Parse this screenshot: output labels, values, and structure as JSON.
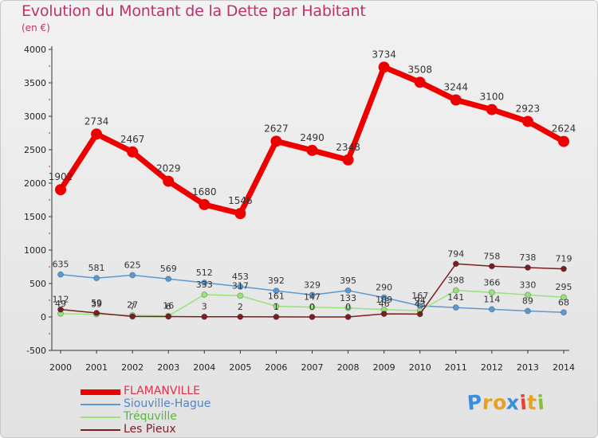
{
  "header": {
    "title": "Evolution du Montant de la Dette par Habitant",
    "subtitle": "(en €)"
  },
  "colors": {
    "title": "#c0306a",
    "axis": "#333333"
  },
  "chart_data": {
    "type": "line",
    "title": "Evolution du Montant de la Dette par Habitant",
    "subtitle": "(en €)",
    "xlabel": "",
    "ylabel": "",
    "categories": [
      "2000",
      "2001",
      "2002",
      "2003",
      "2004",
      "2005",
      "2006",
      "2007",
      "2008",
      "2009",
      "2010",
      "2011",
      "2012",
      "2013",
      "2014"
    ],
    "ylim": [
      -500,
      4000
    ],
    "yticks": [
      -500,
      0,
      500,
      1000,
      1500,
      2000,
      2500,
      3000,
      3500,
      4000
    ],
    "grid": false,
    "legend_position": "bottom-left",
    "series": [
      {
        "name": "FLAMANVILLE",
        "color": "#ee0000",
        "labelColor": "#e03050",
        "values": [
          1902,
          2734,
          2467,
          2029,
          1680,
          1546,
          2627,
          2490,
          2348,
          3734,
          3508,
          3244,
          3100,
          2923,
          2624
        ]
      },
      {
        "name": "Siouville-Hague",
        "color": "#5a9ad2",
        "labelColor": "#4f86c6",
        "values": [
          635,
          581,
          625,
          569,
          512,
          453,
          392,
          329,
          395,
          290,
          167,
          141,
          114,
          89,
          68
        ]
      },
      {
        "name": "Tréquville",
        "color": "#99e27a",
        "labelColor": "#55b83c",
        "values": [
          49,
          39,
          27,
          16,
          333,
          317,
          161,
          147,
          133,
          109,
          94,
          398,
          366,
          330,
          295
        ]
      },
      {
        "name": "Les Pieux",
        "color": "#7a1e22",
        "labelColor": "#7a1e22",
        "values": [
          112,
          59,
          7,
          6,
          3,
          2,
          1,
          0,
          0,
          46,
          43,
          794,
          758,
          738,
          719
        ]
      }
    ]
  },
  "logo": {
    "letters": [
      "P",
      "r",
      "o",
      "x",
      "i",
      "t",
      "i"
    ],
    "colors": [
      "#3a8fd8",
      "#e8a020",
      "#e8a020",
      "#3a8fd8",
      "#e84030",
      "#e8a020",
      "#88c040"
    ]
  }
}
